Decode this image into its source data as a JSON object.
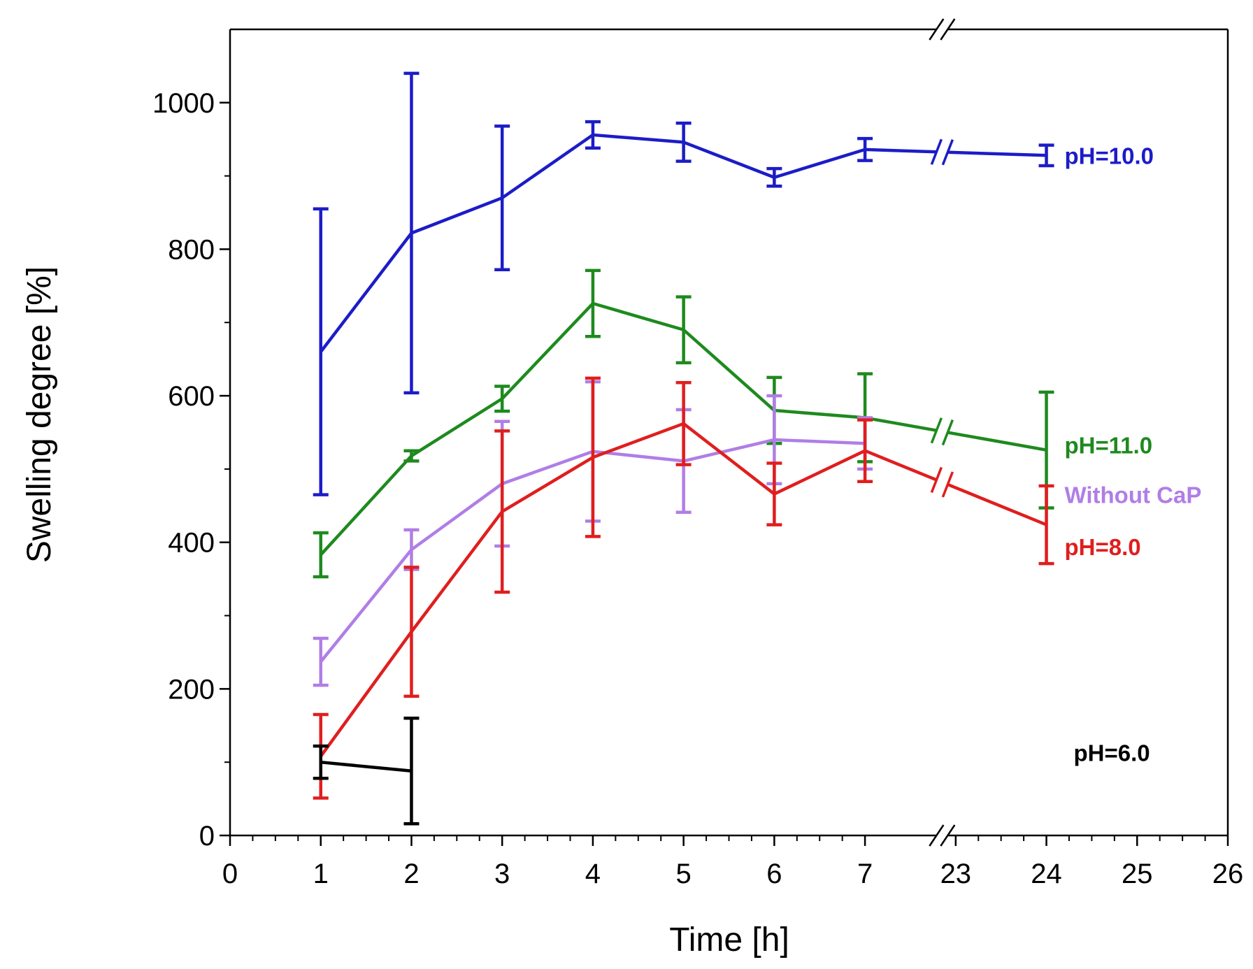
{
  "chart_data": {
    "type": "line",
    "title": "",
    "xlabel": "Time [h]",
    "ylabel": "Swelling degree [%]",
    "ylim": [
      0,
      1100
    ],
    "xlim": [
      0,
      26
    ],
    "axis_break": "between 7 and 23",
    "x_tick_labels": [
      "0",
      "1",
      "2",
      "3",
      "4",
      "5",
      "6",
      "7",
      "23",
      "24",
      "25",
      "26"
    ],
    "y_ticks": [
      0,
      200,
      400,
      600,
      800,
      1000
    ],
    "y_tick_labels": [
      "0",
      "200",
      "400",
      "600",
      "800",
      "1000"
    ],
    "series": [
      {
        "name": "pH=10.0",
        "color": "#1c1cc8",
        "x": [
          1,
          2,
          3,
          4,
          5,
          6,
          7,
          24
        ],
        "y": [
          660,
          822,
          870,
          956,
          946,
          898,
          936,
          928
        ],
        "err": [
          195,
          218,
          98,
          18,
          26,
          12,
          15,
          14
        ]
      },
      {
        "name": "pH=11.0",
        "color": "#1e8a1e",
        "x": [
          1,
          2,
          3,
          4,
          5,
          6,
          7,
          24
        ],
        "y": [
          383,
          518,
          596,
          726,
          690,
          580,
          570,
          526
        ],
        "err": [
          30,
          7,
          17,
          45,
          45,
          45,
          60,
          79
        ]
      },
      {
        "name": "Without CaP",
        "color": "#b07ee6",
        "x": [
          1,
          2,
          3,
          4,
          5,
          6,
          7
        ],
        "y": [
          237,
          390,
          480,
          524,
          511,
          540,
          535
        ],
        "err": [
          32,
          27,
          85,
          95,
          70,
          60,
          35
        ]
      },
      {
        "name": "pH=8.0",
        "color": "#e01e1e",
        "x": [
          1,
          2,
          3,
          4,
          5,
          6,
          7,
          24
        ],
        "y": [
          108,
          278,
          442,
          516,
          562,
          466,
          525,
          424
        ],
        "err": [
          57,
          88,
          110,
          108,
          56,
          42,
          42,
          53
        ]
      },
      {
        "name": "pH=6.0",
        "color": "#000000",
        "x": [
          1,
          2
        ],
        "y": [
          100,
          88
        ],
        "err": [
          22,
          72
        ]
      }
    ],
    "series_labels": [
      {
        "text": "pH=10.0",
        "color": "#1c1cc8",
        "x": 24.2,
        "y": 928
      },
      {
        "text": "pH=11.0",
        "color": "#1e8a1e",
        "x": 24.2,
        "y": 533
      },
      {
        "text": "Without CaP",
        "color": "#b07ee6",
        "x": 24.2,
        "y": 465
      },
      {
        "text": "pH=8.0",
        "color": "#e01e1e",
        "x": 24.2,
        "y": 394
      },
      {
        "text": "pH=6.0",
        "color": "#000000",
        "x": 24.3,
        "y": 113
      }
    ]
  }
}
